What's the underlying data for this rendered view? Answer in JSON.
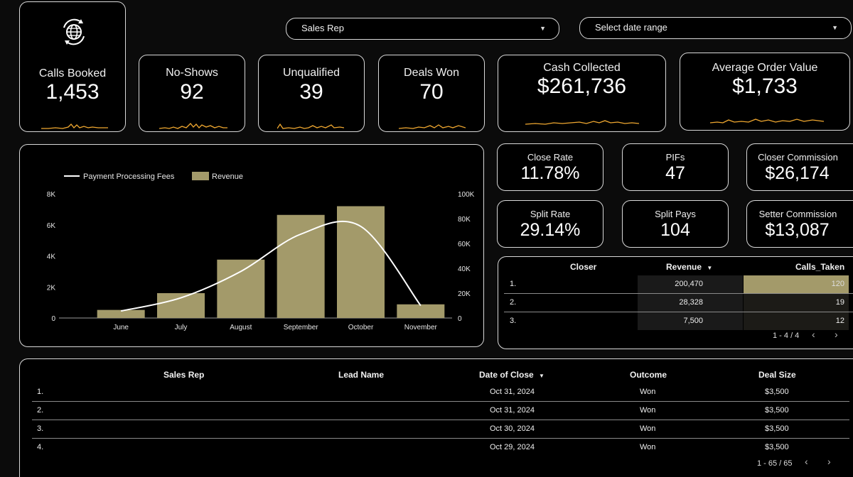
{
  "filters": {
    "sales_rep": "Sales Rep",
    "date_range": "Select date range"
  },
  "kpis": {
    "calls_booked": {
      "label": "Calls Booked",
      "value": "1,453"
    },
    "no_shows": {
      "label": "No-Shows",
      "value": "92"
    },
    "unqualified": {
      "label": "Unqualified",
      "value": "39"
    },
    "deals_won": {
      "label": "Deals Won",
      "value": "70"
    },
    "cash_collected": {
      "label": "Cash Collected",
      "value": "$261,736"
    },
    "avg_order_value": {
      "label": "Average Order Value",
      "value": "$1,733"
    },
    "close_rate": {
      "label": "Close Rate",
      "value": "11.78%"
    },
    "pifs": {
      "label": "PIFs",
      "value": "47"
    },
    "closer_commission": {
      "label": "Closer Commission",
      "value": "$26,174"
    },
    "split_rate": {
      "label": "Split Rate",
      "value": "29.14%"
    },
    "split_pays": {
      "label": "Split Pays",
      "value": "104"
    },
    "setter_commission": {
      "label": "Setter Commission",
      "value": "$13,087"
    }
  },
  "colors": {
    "accent_gold": "#a39a6a",
    "spark_orange": "#f0a830",
    "line_white": "#ffffff"
  },
  "chart_data": {
    "type": "bar",
    "categories": [
      "June",
      "July",
      "August",
      "September",
      "October",
      "November"
    ],
    "series": [
      {
        "name": "Revenue",
        "kind": "bar",
        "axis": "right",
        "values": [
          6500,
          20000,
          47000,
          83000,
          90000,
          11000
        ]
      },
      {
        "name": "Payment Processing Fees",
        "kind": "line",
        "axis": "left",
        "values": [
          450,
          1300,
          3000,
          5400,
          5900,
          800
        ]
      }
    ],
    "y_left_ticks": [
      "0",
      "2K",
      "4K",
      "6K",
      "8K"
    ],
    "y_left_lim": [
      0,
      8000
    ],
    "y_right_ticks": [
      "0",
      "20K",
      "40K",
      "60K",
      "80K",
      "100K"
    ],
    "y_right_lim": [
      0,
      100000
    ],
    "legend": "top-left",
    "grid": false
  },
  "closer_table": {
    "headers": {
      "closer": "Closer",
      "revenue": "Revenue",
      "calls": "Calls_Taken"
    },
    "sort_indicator": "▼",
    "rows": [
      {
        "idx": "1.",
        "revenue": "200,470",
        "calls": "120",
        "calls_frac": 1.0
      },
      {
        "idx": "2.",
        "revenue": "28,328",
        "calls": "19",
        "calls_frac": 0.16
      },
      {
        "idx": "3.",
        "revenue": "7,500",
        "calls": "12",
        "calls_frac": 0.1
      }
    ],
    "pager": "1 - 4 / 4"
  },
  "deals_table": {
    "headers": {
      "sales_rep": "Sales Rep",
      "lead_name": "Lead Name",
      "date_of_close": "Date of Close",
      "outcome": "Outcome",
      "deal_size": "Deal Size"
    },
    "sort_indicator": "▼",
    "rows": [
      {
        "idx": "1.",
        "date": "Oct 31, 2024",
        "outcome": "Won",
        "deal_size": "$3,500"
      },
      {
        "idx": "2.",
        "date": "Oct 31, 2024",
        "outcome": "Won",
        "deal_size": "$3,500"
      },
      {
        "idx": "3.",
        "date": "Oct 30, 2024",
        "outcome": "Won",
        "deal_size": "$3,500"
      },
      {
        "idx": "4.",
        "date": "Oct 29, 2024",
        "outcome": "Won",
        "deal_size": "$3,500"
      }
    ],
    "pager": "1 - 65 / 65"
  },
  "icons": {
    "logo": "globe-refresh-icon",
    "prev": "chevron-left-icon",
    "next": "chevron-right-icon",
    "dropdown": "caret-down-icon"
  }
}
